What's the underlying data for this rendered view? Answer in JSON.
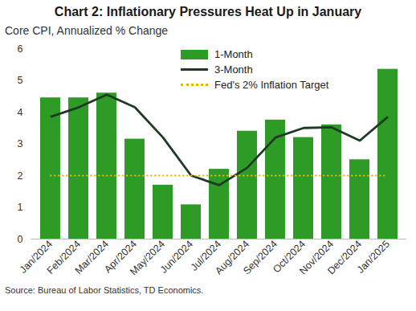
{
  "chart_data": {
    "type": "bar",
    "title": "Chart 2: Inflationary Pressures Heat Up in January",
    "subtitle": "Core CPI, Annualized % Change",
    "source": "Source: Bureau of Labor Statistics, TD Economics.",
    "categories": [
      "Jan/2024",
      "Feb/2024",
      "Mar/2024",
      "Apr/2024",
      "May/2024",
      "Jun/2024",
      "Jul/2024",
      "Aug/2024",
      "Sep/2024",
      "Oct/2024",
      "Nov/2024",
      "Dec/2024",
      "Jan/2025"
    ],
    "series": [
      {
        "name": "1-Month",
        "type": "bar",
        "color": "#2f9b27",
        "values": [
          4.45,
          4.45,
          4.6,
          3.15,
          1.7,
          1.08,
          2.2,
          3.4,
          3.75,
          3.2,
          3.6,
          2.5,
          5.35
        ]
      },
      {
        "name": "3-Month",
        "type": "line",
        "color": "#1e3a24",
        "line_style": "solid",
        "values": [
          3.85,
          4.15,
          4.55,
          4.15,
          3.2,
          2.0,
          1.7,
          2.25,
          3.2,
          3.5,
          3.52,
          3.1,
          3.85
        ]
      },
      {
        "name": "Fed's 2% Inflation Target",
        "type": "line",
        "color": "#e5b50c",
        "line_style": "dotted",
        "values": [
          2,
          2,
          2,
          2,
          2,
          2,
          2,
          2,
          2,
          2,
          2,
          2,
          2
        ]
      }
    ],
    "ylim": [
      0,
      6
    ],
    "yticks": [
      0,
      1,
      2,
      3,
      4,
      5,
      6
    ],
    "grid": false,
    "legend": "top"
  }
}
